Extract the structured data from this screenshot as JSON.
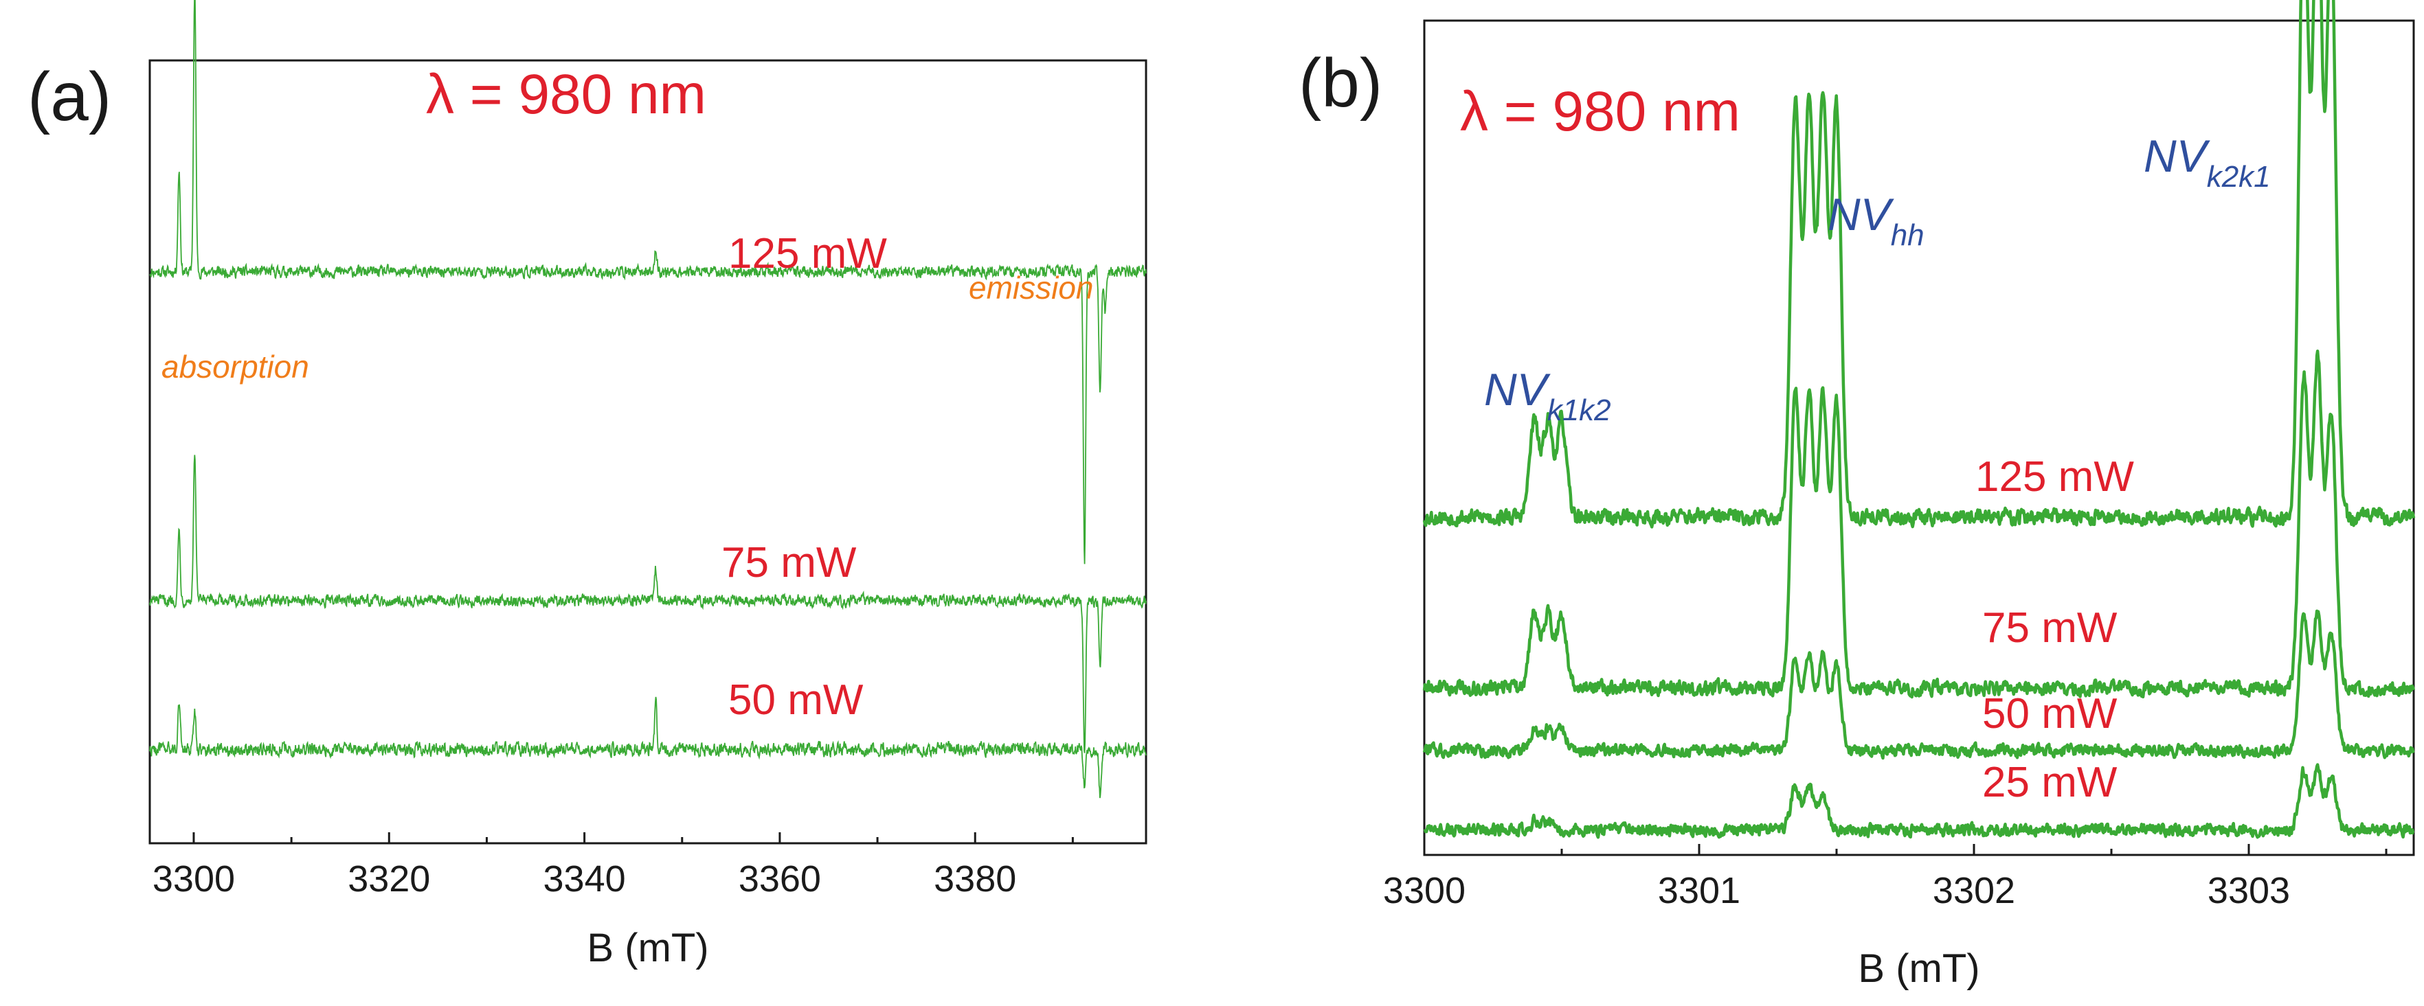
{
  "figure": {
    "panel_a_label": "(a)",
    "panel_b_label": "(b)"
  },
  "chart_data": [
    {
      "type": "line",
      "panel": "(a)",
      "title": "λ = 980 nm",
      "xlabel": "B (mT)",
      "ylabel": "",
      "xlim": [
        3295.5,
        3397.5
      ],
      "xticks": [
        3300,
        3320,
        3340,
        3360,
        3380
      ],
      "xtick_labels": [
        "3300",
        "3320",
        "3340",
        "3360",
        "3380"
      ],
      "ylim": [
        0,
        1
      ],
      "annotations": [
        "absorption",
        "emission"
      ],
      "series": [
        {
          "name": "125 mW",
          "offset": 0.73,
          "noise": 0.006,
          "peaks": [
            {
              "x": 3298.5,
              "height": 0.13
            },
            {
              "x": 3300.1,
              "height": 0.36
            },
            {
              "x": 3347.3,
              "height": 0.028
            },
            {
              "x": 3391.2,
              "height": -0.37
            },
            {
              "x": 3392.8,
              "height": -0.15
            },
            {
              "x": 3393.3,
              "height": -0.05
            }
          ]
        },
        {
          "name": "75 mW",
          "offset": 0.31,
          "noise": 0.006,
          "peaks": [
            {
              "x": 3298.5,
              "height": 0.09
            },
            {
              "x": 3300.1,
              "height": 0.19
            },
            {
              "x": 3347.3,
              "height": 0.04
            },
            {
              "x": 3391.2,
              "height": -0.2
            },
            {
              "x": 3392.8,
              "height": -0.08
            }
          ]
        },
        {
          "name": "50 mW",
          "offset": 0.12,
          "noise": 0.007,
          "peaks": [
            {
              "x": 3298.5,
              "height": 0.06
            },
            {
              "x": 3300.1,
              "height": 0.05
            },
            {
              "x": 3347.3,
              "height": 0.06
            },
            {
              "x": 3391.2,
              "height": -0.05
            },
            {
              "x": 3392.8,
              "height": -0.06
            }
          ]
        }
      ]
    },
    {
      "type": "line",
      "panel": "(b)",
      "title": "λ = 980 nm",
      "xlabel": "B (mT)",
      "ylabel": "",
      "xlim": [
        3300,
        3303.6
      ],
      "xticks": [
        3300,
        3301,
        3302,
        3303
      ],
      "xtick_labels": [
        "3300",
        "3301",
        "3302",
        "3303"
      ],
      "ylim": [
        0,
        1
      ],
      "peak_labels": [
        {
          "base": "NV",
          "sub": "k1k2",
          "x": 3300.45
        },
        {
          "base": "NV",
          "sub": "hh",
          "x": 3301.45
        },
        {
          "base": "NV",
          "sub": "k2k1",
          "x": 3303.25
        }
      ],
      "series": [
        {
          "name": "125 mW",
          "offset": 0.405,
          "noise": 0.008,
          "peaks": [
            {
              "x": 3300.4,
              "height": 0.115
            },
            {
              "x": 3300.45,
              "height": 0.115
            },
            {
              "x": 3300.5,
              "height": 0.115
            },
            {
              "x": 3301.35,
              "height": 0.5
            },
            {
              "x": 3301.4,
              "height": 0.5
            },
            {
              "x": 3301.45,
              "height": 0.5
            },
            {
              "x": 3301.5,
              "height": 0.49
            },
            {
              "x": 3303.2,
              "height": 0.74
            },
            {
              "x": 3303.25,
              "height": 0.75
            },
            {
              "x": 3303.3,
              "height": 0.7
            }
          ]
        },
        {
          "name": "75 mW",
          "offset": 0.2,
          "noise": 0.007,
          "peaks": [
            {
              "x": 3300.4,
              "height": 0.09
            },
            {
              "x": 3300.45,
              "height": 0.09
            },
            {
              "x": 3300.5,
              "height": 0.09
            },
            {
              "x": 3301.35,
              "height": 0.35
            },
            {
              "x": 3301.4,
              "height": 0.35
            },
            {
              "x": 3301.45,
              "height": 0.35
            },
            {
              "x": 3301.5,
              "height": 0.34
            },
            {
              "x": 3303.2,
              "height": 0.37
            },
            {
              "x": 3303.25,
              "height": 0.39
            },
            {
              "x": 3303.3,
              "height": 0.33
            }
          ]
        },
        {
          "name": "50 mW",
          "offset": 0.125,
          "noise": 0.006,
          "peaks": [
            {
              "x": 3300.4,
              "height": 0.025
            },
            {
              "x": 3300.45,
              "height": 0.025
            },
            {
              "x": 3300.5,
              "height": 0.025
            },
            {
              "x": 3301.35,
              "height": 0.11
            },
            {
              "x": 3301.4,
              "height": 0.11
            },
            {
              "x": 3301.45,
              "height": 0.11
            },
            {
              "x": 3301.5,
              "height": 0.1
            },
            {
              "x": 3303.2,
              "height": 0.16
            },
            {
              "x": 3303.25,
              "height": 0.16
            },
            {
              "x": 3303.3,
              "height": 0.14
            }
          ]
        },
        {
          "name": "25 mW",
          "offset": 0.03,
          "noise": 0.006,
          "peaks": [
            {
              "x": 3300.4,
              "height": 0.01
            },
            {
              "x": 3300.45,
              "height": 0.01
            },
            {
              "x": 3301.35,
              "height": 0.05
            },
            {
              "x": 3301.4,
              "height": 0.05
            },
            {
              "x": 3301.45,
              "height": 0.04
            },
            {
              "x": 3303.2,
              "height": 0.07
            },
            {
              "x": 3303.25,
              "height": 0.07
            },
            {
              "x": 3303.3,
              "height": 0.06
            }
          ]
        }
      ]
    }
  ]
}
